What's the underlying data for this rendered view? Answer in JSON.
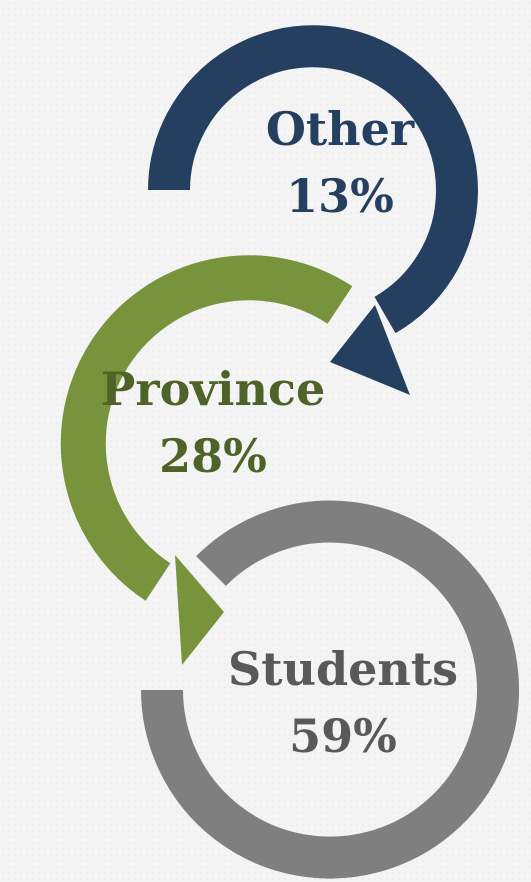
{
  "nodes": [
    {
      "label": "Other",
      "value": "13%"
    },
    {
      "label": "Province",
      "value": "28%"
    },
    {
      "label": "Students",
      "value": "59%"
    }
  ]
}
